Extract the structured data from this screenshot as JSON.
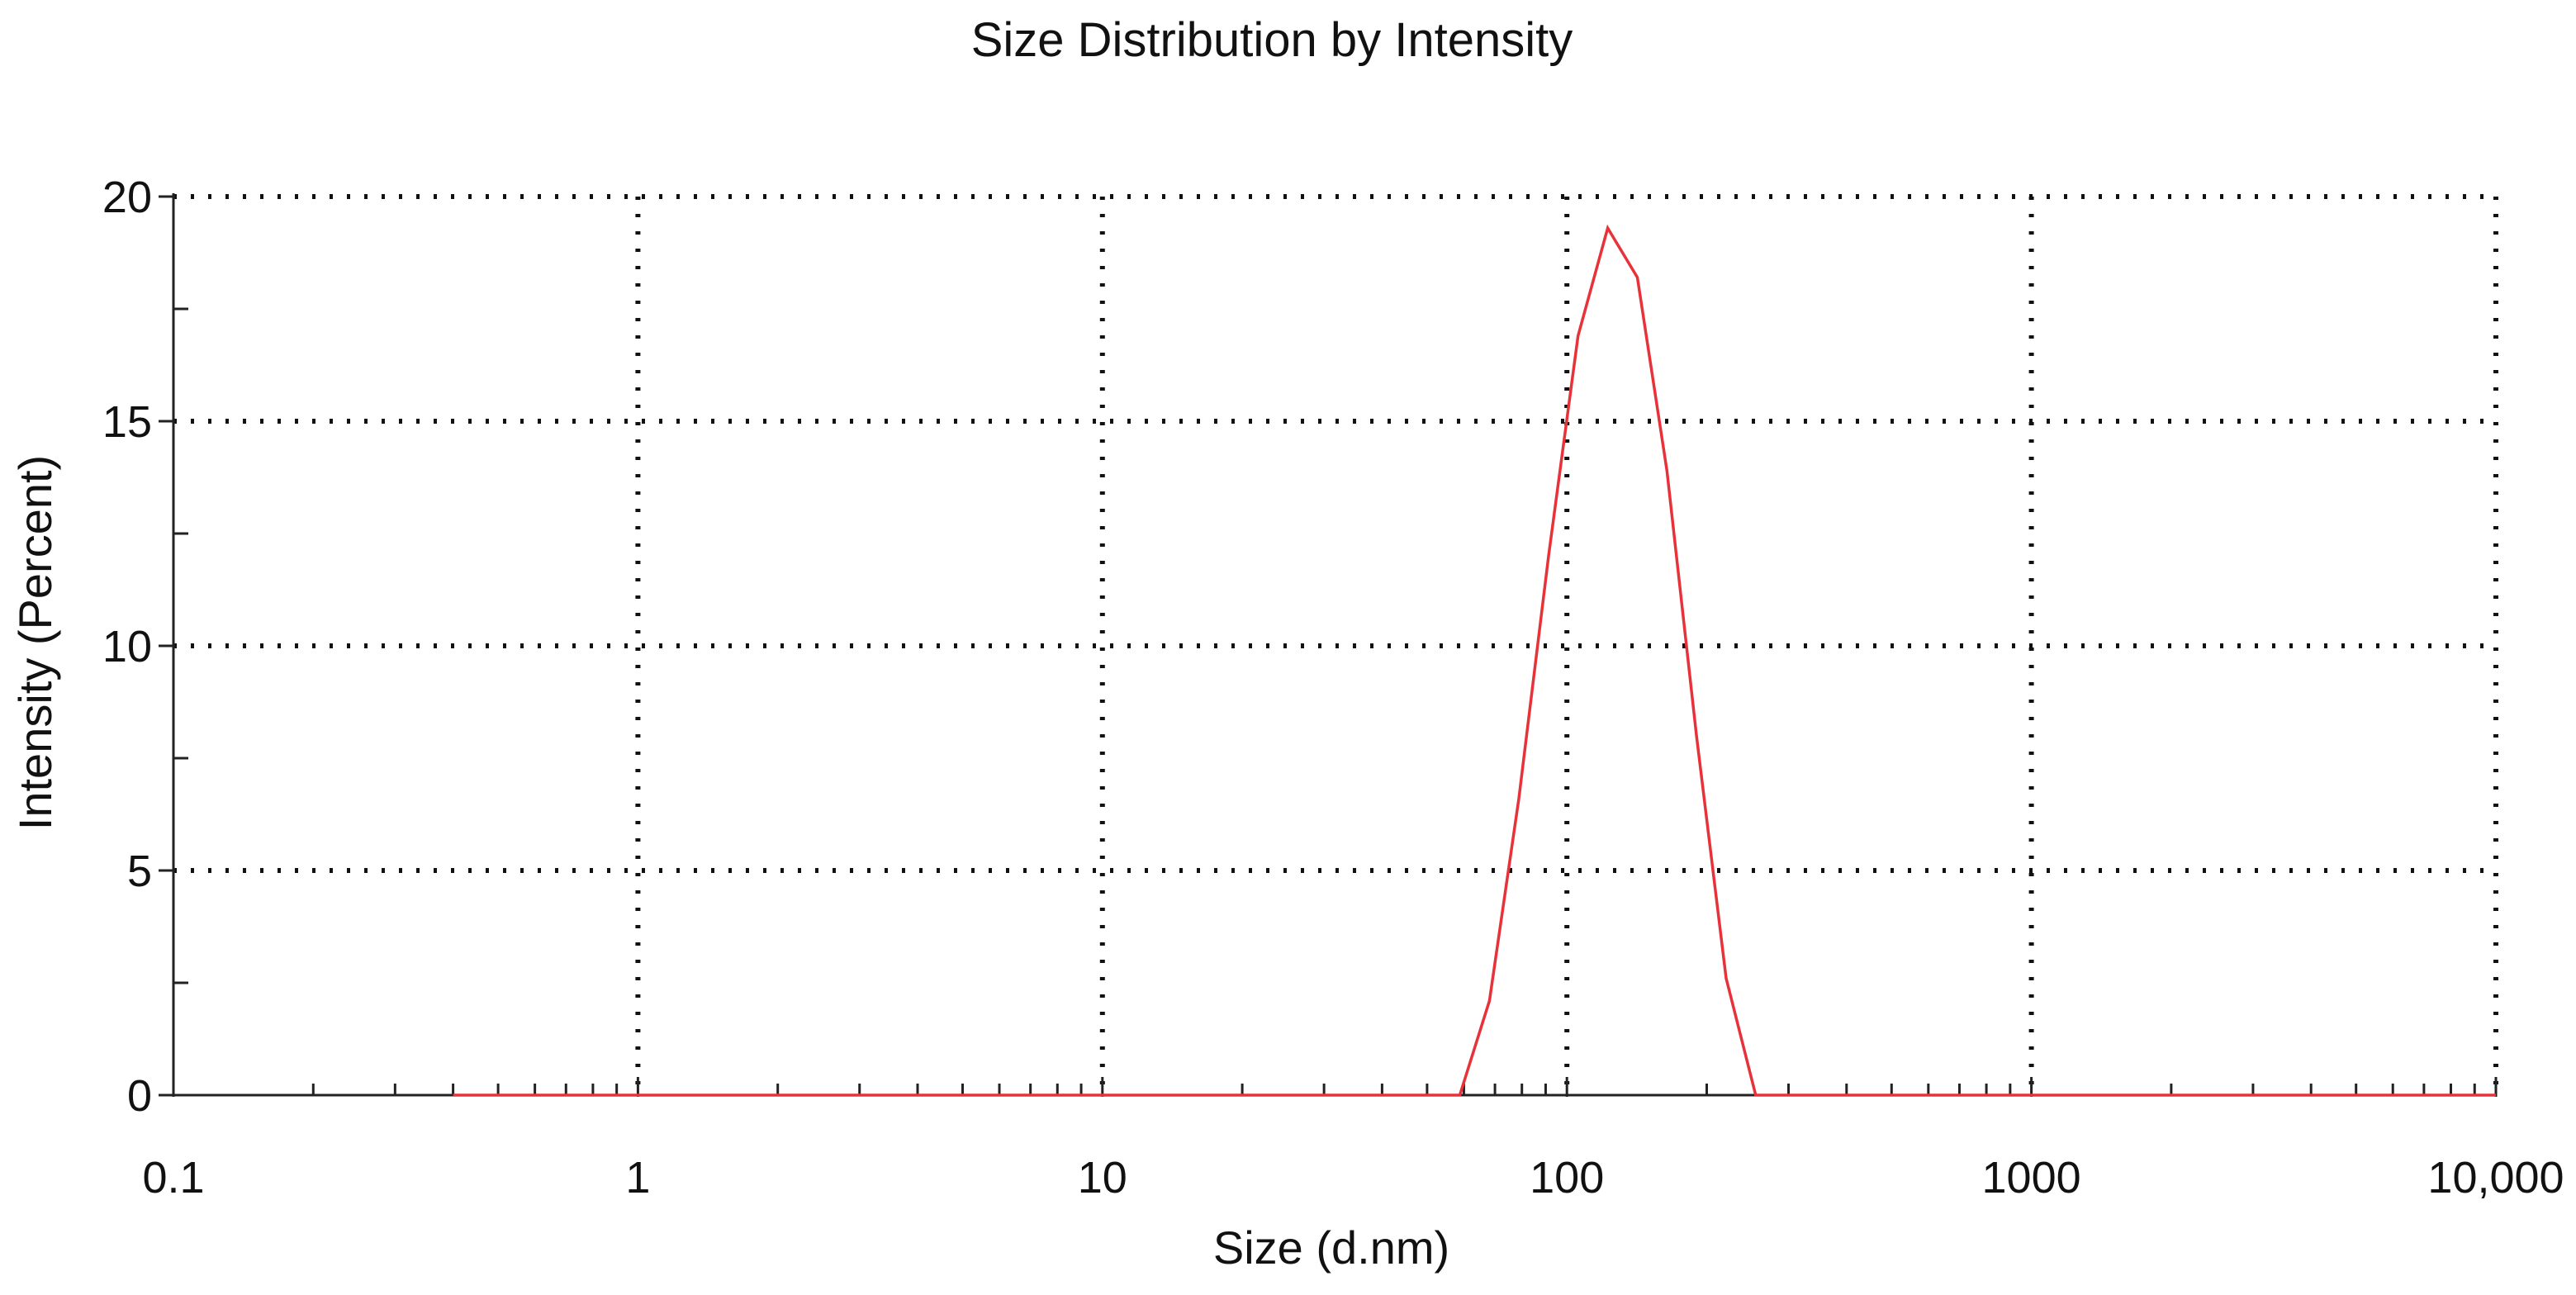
{
  "chart_data": {
    "type": "line",
    "title": "Size Distribution by Intensity",
    "xlabel": "Size (d.nm)",
    "ylabel": "Intensity (Percent)",
    "x_scale": "log",
    "xlim": [
      0.1,
      10000
    ],
    "ylim": [
      0,
      20
    ],
    "grid": true,
    "legend": "none",
    "x_ticks": [
      {
        "value": 0.1,
        "label": "0.1"
      },
      {
        "value": 1,
        "label": "1"
      },
      {
        "value": 10,
        "label": "10"
      },
      {
        "value": 100,
        "label": "100"
      },
      {
        "value": 1000,
        "label": "1000"
      },
      {
        "value": 10000,
        "label": "10,000"
      }
    ],
    "y_ticks": [
      {
        "value": 0,
        "label": "0"
      },
      {
        "value": 5,
        "label": "5"
      },
      {
        "value": 10,
        "label": "10"
      },
      {
        "value": 15,
        "label": "15"
      },
      {
        "value": 20,
        "label": "20"
      }
    ],
    "series": [
      {
        "color": "#e8323a",
        "x": [
          0.4,
          1,
          10,
          58.8,
          68.1,
          78.8,
          91.3,
          105.7,
          122.4,
          141.8,
          164.2,
          190.1,
          220.2,
          255,
          300,
          1000,
          10000
        ],
        "y": [
          0,
          0,
          0,
          0,
          2.1,
          6.6,
          12.0,
          16.9,
          19.3,
          18.2,
          13.9,
          8.0,
          2.6,
          0,
          0,
          0,
          0
        ]
      }
    ]
  }
}
